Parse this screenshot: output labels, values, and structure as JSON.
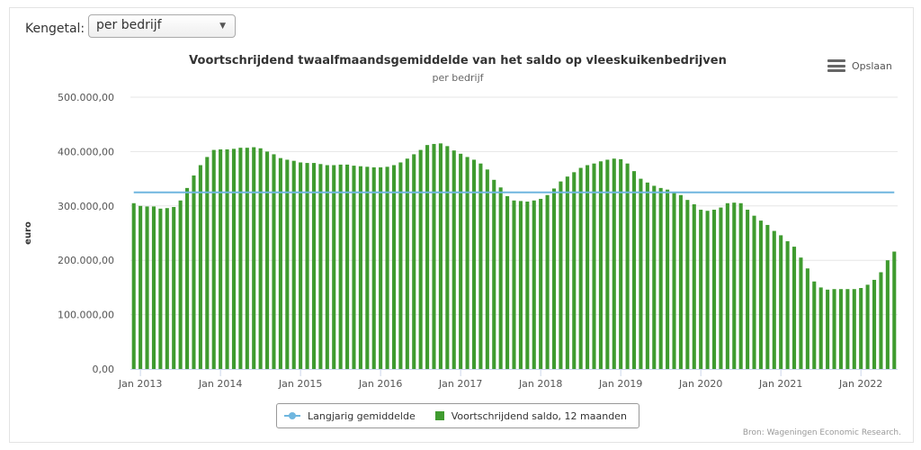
{
  "controls": {
    "kengetal_label": "Kengetal:",
    "kengetal_value": "per bedrijf",
    "export_label": "Opslaan"
  },
  "credits": "Bron: Wageningen Economic Research.",
  "colors": {
    "bar": "#3f9b2f",
    "line": "#6fb6df",
    "grid": "#e6e6e6",
    "axis": "#ccd6eb"
  },
  "icons": {
    "export": "hamburger-menu-icon",
    "dropdown": "triangle-down-icon"
  },
  "chart_data": {
    "type": "bar",
    "title": "Voortschrijdend twaalfmaandsgemiddelde van het saldo op vleeskuikenbedrijven",
    "subtitle": "per bedrijf",
    "xlabel": "",
    "ylabel": "euro",
    "ylim": [
      0,
      500000
    ],
    "ytick_values": [
      0,
      100000,
      200000,
      300000,
      400000,
      500000
    ],
    "ytick_labels": [
      "0,00",
      "100.000,00",
      "200.000,00",
      "300.000,00",
      "400.000,00",
      "500.000,00"
    ],
    "xtick_labels": [
      "Jan 2013",
      "Jan 2014",
      "Jan 2015",
      "Jan 2016",
      "Jan 2017",
      "Jan 2018",
      "Jan 2019",
      "Jan 2020",
      "Jan 2021",
      "Jan 2022"
    ],
    "x_start": "2012-12",
    "x_end": "2022-03",
    "grid": true,
    "legend_position": "bottom-center",
    "series": [
      {
        "name": "Voortschrijdend saldo, 12 maanden",
        "type": "bar",
        "values": [
          305000,
          300000,
          299000,
          299000,
          295000,
          296000,
          298000,
          310000,
          333000,
          356000,
          375000,
          390000,
          403000,
          404000,
          404000,
          405000,
          407000,
          407000,
          408000,
          406000,
          400000,
          395000,
          388000,
          385000,
          383000,
          380000,
          379000,
          379000,
          377000,
          375000,
          375000,
          376000,
          376000,
          374000,
          373000,
          372000,
          371000,
          371000,
          372000,
          375000,
          380000,
          387000,
          395000,
          403000,
          412000,
          414000,
          415000,
          410000,
          402000,
          396000,
          390000,
          385000,
          378000,
          367000,
          348000,
          334000,
          318000,
          310000,
          309000,
          308000,
          310000,
          313000,
          320000,
          332000,
          345000,
          354000,
          362000,
          370000,
          375000,
          378000,
          382000,
          385000,
          387000,
          386000,
          378000,
          364000,
          350000,
          343000,
          337000,
          333000,
          330000,
          325000,
          320000,
          311000,
          303000,
          293000,
          291000,
          293000,
          297000,
          305000,
          306000,
          305000,
          293000,
          282000,
          273000,
          265000,
          254000,
          246000,
          235000,
          225000,
          205000,
          185000,
          161000,
          150000,
          146000,
          147000,
          147000,
          147000,
          147000,
          149000,
          155000,
          164000,
          178000,
          200000,
          216000
        ]
      },
      {
        "name": "Langjarig gemiddelde",
        "type": "line",
        "value": 325000
      }
    ]
  }
}
